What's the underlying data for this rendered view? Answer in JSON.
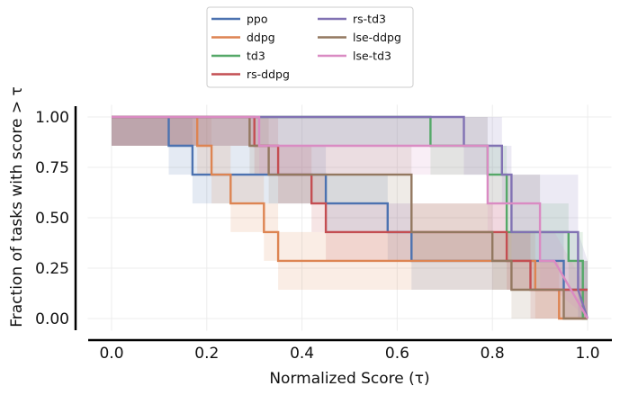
{
  "chart_data": {
    "type": "line",
    "title": "",
    "xlabel": "Normalized Score (τ)",
    "ylabel": "Fraction of tasks with score > τ",
    "xlim": [
      -0.05,
      1.05
    ],
    "ylim": [
      -0.06,
      1.06
    ],
    "xticks": [
      0.0,
      0.2,
      0.4,
      0.6,
      0.8,
      1.0
    ],
    "xtick_labels": [
      "0.0",
      "0.2",
      "0.4",
      "0.6",
      "0.8",
      "1.0"
    ],
    "yticks": [
      0.0,
      0.25,
      0.5,
      0.75,
      1.0
    ],
    "ytick_labels": [
      "0.00",
      "0.25",
      "0.50",
      "0.75",
      "1.00"
    ],
    "grid": true,
    "legend_position": "top-center, outside, 2 columns",
    "series": [
      {
        "name": "ppo",
        "color": "#4c72b0",
        "x": [
          0.0,
          0.12,
          0.12,
          0.17,
          0.17,
          0.45,
          0.45,
          0.58,
          0.58,
          0.63,
          0.63,
          0.95,
          0.95,
          1.0
        ],
        "y": [
          1.0,
          1.0,
          0.857,
          0.857,
          0.714,
          0.714,
          0.571,
          0.571,
          0.429,
          0.429,
          0.286,
          0.286,
          0.143,
          0.143
        ],
        "band_upper": [
          1.0,
          1.0,
          1.0,
          1.0,
          0.857,
          0.857,
          0.714,
          0.714,
          0.571,
          0.571,
          0.429,
          0.429,
          0.286,
          0.286
        ],
        "band_lower": [
          0.857,
          0.857,
          0.714,
          0.714,
          0.571,
          0.571,
          0.429,
          0.429,
          0.286,
          0.286,
          0.143,
          0.143,
          0.0,
          0.0
        ]
      },
      {
        "name": "ddpg",
        "color": "#dd8452",
        "x": [
          0.0,
          0.18,
          0.18,
          0.21,
          0.21,
          0.25,
          0.25,
          0.32,
          0.32,
          0.35,
          0.35,
          0.89,
          0.89,
          0.94,
          0.94,
          1.0
        ],
        "y": [
          1.0,
          1.0,
          0.857,
          0.857,
          0.714,
          0.714,
          0.571,
          0.571,
          0.429,
          0.429,
          0.286,
          0.286,
          0.143,
          0.143,
          0.0,
          0.0
        ],
        "band_upper": [
          1.0,
          1.0,
          1.0,
          1.0,
          0.857,
          0.857,
          0.714,
          0.714,
          0.571,
          0.571,
          0.429,
          0.429,
          0.286,
          0.286,
          0.143,
          0.143
        ],
        "band_lower": [
          0.857,
          0.857,
          0.714,
          0.714,
          0.571,
          0.571,
          0.429,
          0.429,
          0.286,
          0.286,
          0.143,
          0.143,
          0.0,
          0.0,
          0.0,
          0.0
        ]
      },
      {
        "name": "td3",
        "color": "#55a868",
        "x": [
          0.0,
          0.67,
          0.67,
          0.79,
          0.79,
          0.83,
          0.83,
          0.9,
          0.9,
          0.96,
          0.96,
          0.99,
          0.99,
          1.0
        ],
        "y": [
          1.0,
          1.0,
          0.857,
          0.857,
          0.714,
          0.714,
          0.429,
          0.429,
          0.429,
          0.429,
          0.286,
          0.286,
          0.0,
          0.0
        ],
        "band_upper": [
          1.0,
          1.0,
          1.0,
          1.0,
          0.857,
          0.857,
          0.714,
          0.714,
          0.571,
          0.571,
          0.429,
          0.429,
          0.286,
          0.286
        ],
        "band_lower": [
          0.857,
          0.857,
          0.714,
          0.714,
          0.571,
          0.571,
          0.286,
          0.286,
          0.286,
          0.286,
          0.143,
          0.143,
          0.0,
          0.0
        ]
      },
      {
        "name": "rs-ddpg",
        "color": "#c44e52",
        "x": [
          0.0,
          0.3,
          0.3,
          0.35,
          0.35,
          0.42,
          0.42,
          0.45,
          0.45,
          0.83,
          0.83,
          0.88,
          0.88,
          0.92,
          0.92,
          1.0
        ],
        "y": [
          1.0,
          1.0,
          0.857,
          0.857,
          0.714,
          0.714,
          0.571,
          0.571,
          0.429,
          0.429,
          0.286,
          0.286,
          0.143,
          0.143,
          0.143,
          0.143
        ],
        "band_upper": [
          1.0,
          1.0,
          1.0,
          1.0,
          0.857,
          0.857,
          0.714,
          0.714,
          0.571,
          0.571,
          0.429,
          0.429,
          0.286,
          0.286,
          0.286,
          0.286
        ],
        "band_lower": [
          0.857,
          0.857,
          0.714,
          0.714,
          0.571,
          0.571,
          0.429,
          0.429,
          0.286,
          0.286,
          0.143,
          0.143,
          0.0,
          0.0,
          0.0,
          0.0
        ]
      },
      {
        "name": "rs-td3",
        "color": "#8172b3",
        "x": [
          0.0,
          0.74,
          0.74,
          0.82,
          0.82,
          0.84,
          0.84,
          0.98,
          0.98,
          1.0
        ],
        "y": [
          1.0,
          1.0,
          0.857,
          0.857,
          0.714,
          0.714,
          0.429,
          0.429,
          0.143,
          0.0
        ],
        "band_upper": [
          1.0,
          1.0,
          1.0,
          1.0,
          0.857,
          0.857,
          0.714,
          0.714,
          0.429,
          0.286
        ],
        "band_lower": [
          0.857,
          0.857,
          0.714,
          0.714,
          0.571,
          0.571,
          0.286,
          0.286,
          0.0,
          0.0
        ]
      },
      {
        "name": "lse-ddpg",
        "color": "#937860",
        "x": [
          0.0,
          0.29,
          0.29,
          0.33,
          0.33,
          0.63,
          0.63,
          0.8,
          0.8,
          0.84,
          0.84,
          0.95,
          0.95,
          1.0
        ],
        "y": [
          1.0,
          1.0,
          0.857,
          0.857,
          0.714,
          0.714,
          0.429,
          0.429,
          0.286,
          0.286,
          0.143,
          0.143,
          0.0,
          0.0
        ],
        "band_upper": [
          1.0,
          1.0,
          1.0,
          1.0,
          0.857,
          0.857,
          0.571,
          0.571,
          0.429,
          0.429,
          0.286,
          0.286,
          0.143,
          0.143
        ],
        "band_lower": [
          0.857,
          0.857,
          0.714,
          0.714,
          0.571,
          0.571,
          0.286,
          0.286,
          0.143,
          0.143,
          0.0,
          0.0,
          0.0,
          0.0
        ]
      },
      {
        "name": "lse-td3",
        "color": "#da8bc3",
        "x": [
          0.0,
          0.31,
          0.31,
          0.79,
          0.79,
          0.9,
          0.9,
          0.93,
          0.93,
          1.0
        ],
        "y": [
          1.0,
          1.0,
          0.857,
          0.857,
          0.571,
          0.571,
          0.286,
          0.286,
          0.286,
          0.0
        ],
        "band_upper": [
          1.0,
          1.0,
          1.0,
          1.0,
          0.714,
          0.714,
          0.429,
          0.429,
          0.429,
          0.143
        ],
        "band_lower": [
          0.857,
          0.857,
          0.714,
          0.714,
          0.429,
          0.429,
          0.143,
          0.143,
          0.143,
          0.0
        ]
      }
    ]
  }
}
